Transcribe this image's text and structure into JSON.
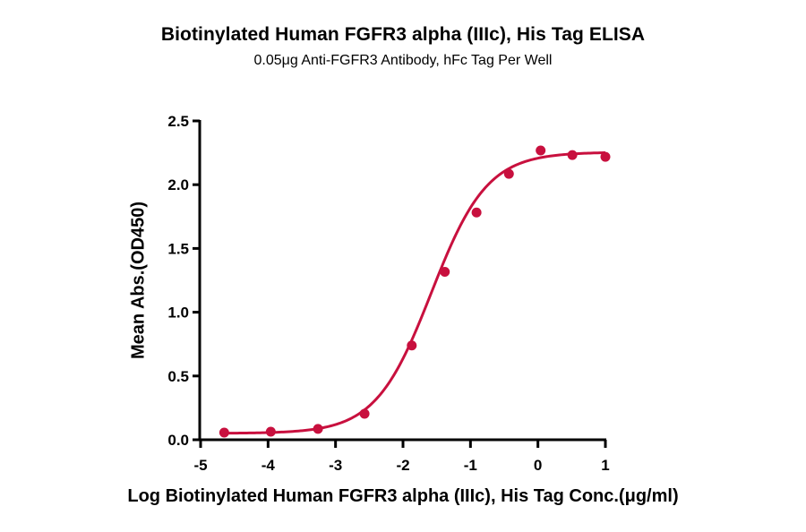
{
  "header": {
    "title": "Biotinylated Human FGFR3 alpha (IIIc), His Tag ELISA",
    "subtitle": "0.05μg  Anti-FGFR3 Antibody, hFc Tag Per Well"
  },
  "axes": {
    "xlabel": "Log Biotinylated Human FGFR3 alpha (IIIc), His Tag Conc.(μg/ml)",
    "ylabel": "Mean Abs.(OD450)"
  },
  "style": {
    "series_color": "#C8103E",
    "axis_color": "#000000"
  },
  "chart_data": {
    "type": "scatter",
    "title": "Biotinylated Human FGFR3 alpha (IIIc), His Tag ELISA",
    "subtitle": "0.05μg  Anti-FGFR3 Antibody, hFc Tag Per Well",
    "xlabel": "Log Biotinylated Human FGFR3 alpha (IIIc), His Tag Conc.(μg/ml)",
    "ylabel": "Mean Abs.(OD450)",
    "xlim": [
      -5,
      1
    ],
    "ylim": [
      0,
      2.5
    ],
    "xticks": [
      -5,
      -4,
      -3,
      -2,
      -1,
      0,
      1
    ],
    "xtick_labels": [
      "-5",
      "-4",
      "-3",
      "-2",
      "-1",
      "0",
      "1"
    ],
    "yticks": [
      0,
      0.5,
      1.0,
      1.5,
      2.0,
      2.5
    ],
    "ytick_labels": [
      "0.0",
      "0.5",
      "1.0",
      "1.5",
      "2.0",
      "2.5"
    ],
    "grid": false,
    "legend": null,
    "series": [
      {
        "name": "Biotinylated Human FGFR3 alpha (IIIc), His Tag",
        "marker": "circle",
        "fit": "4PL sigmoidal curve",
        "x": [
          -4.65,
          -3.96,
          -3.26,
          -2.57,
          -1.87,
          -1.38,
          -0.91,
          -0.43,
          0.04,
          0.51,
          1.0
        ],
        "y": [
          0.056,
          0.063,
          0.085,
          0.204,
          0.739,
          1.317,
          1.782,
          2.085,
          2.268,
          2.232,
          2.218
        ]
      }
    ]
  }
}
